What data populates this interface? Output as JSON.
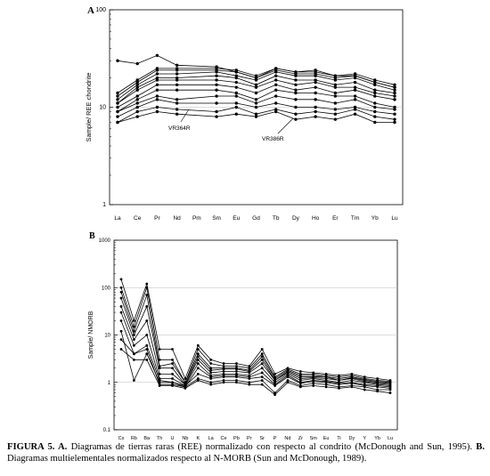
{
  "chart_data": [
    {
      "panel": "A",
      "type": "line",
      "ylabel": "Sample/ REE chondrite",
      "yscale": "log",
      "ylim": [
        1,
        100
      ],
      "ytick_labels": [
        "1",
        "10",
        "100"
      ],
      "grid": true,
      "categories": [
        "La",
        "Ce",
        "Pr",
        "Nd",
        "Pm",
        "Sm",
        "Eu",
        "Gd",
        "Tb",
        "Dy",
        "Ho",
        "Er",
        "Tm",
        "Yb",
        "Lu"
      ],
      "annotations": [
        "VR364R",
        "VR386R"
      ],
      "series": [
        {
          "values": [
            30,
            28,
            34,
            27,
            null,
            26,
            23,
            20,
            25,
            23,
            24,
            21,
            21,
            18,
            16
          ]
        },
        {
          "values": [
            14,
            19,
            25,
            25,
            null,
            25,
            24,
            21,
            25,
            23,
            23,
            21,
            22,
            19,
            17
          ]
        },
        {
          "values": [
            13,
            18,
            24,
            24,
            null,
            24,
            23,
            20,
            24,
            22,
            22,
            20,
            21,
            18,
            16
          ]
        },
        {
          "values": [
            12,
            17,
            22,
            22,
            null,
            23,
            21,
            19,
            23,
            21,
            21,
            19,
            20,
            17,
            15
          ]
        },
        {
          "values": [
            11,
            16,
            20,
            20,
            null,
            21,
            20,
            17,
            21,
            19,
            19,
            17,
            18,
            15,
            14
          ]
        },
        {
          "values": [
            11,
            15,
            19,
            19,
            null,
            19,
            18,
            16,
            19,
            17,
            18,
            16,
            16,
            14,
            13
          ]
        },
        {
          "values": [
            10,
            13,
            17,
            17,
            null,
            17,
            16,
            14,
            17,
            15,
            16,
            14,
            15,
            13,
            12
          ]
        },
        {
          "values": [
            9,
            12,
            15,
            15,
            null,
            15,
            14,
            12,
            15,
            14,
            14,
            13,
            13,
            11,
            10
          ]
        },
        {
          "values": [
            9,
            11,
            13,
            12,
            null,
            13,
            13,
            11,
            13,
            12,
            12,
            11,
            12,
            10,
            9.5
          ]
        },
        {
          "values": [
            8,
            10,
            12,
            11,
            null,
            11,
            11,
            10,
            11,
            10,
            10,
            9.5,
            10,
            9,
            8.5
          ]
        },
        {
          "values": [
            7,
            9,
            10,
            9.5,
            null,
            9,
            10,
            8.5,
            9.5,
            8.5,
            9,
            8.5,
            9.5,
            8,
            7.5
          ]
        },
        {
          "values": [
            7,
            8,
            9,
            8.5,
            null,
            8,
            8.5,
            8,
            9,
            7.5,
            8,
            7.5,
            8.5,
            7,
            7
          ]
        }
      ]
    },
    {
      "panel": "B",
      "type": "line",
      "ylabel": "Sample/ NMORB",
      "yscale": "log",
      "ylim": [
        0.1,
        1000
      ],
      "ytick_labels": [
        "0.1",
        "1",
        "10",
        "100",
        "1000"
      ],
      "grid": true,
      "categories": [
        "Cs",
        "Rb",
        "Ba",
        "Th",
        "U",
        "Nb",
        "K",
        "La",
        "Ce",
        "Pb",
        "Pr",
        "Sr",
        "P",
        "Nd",
        "Zr",
        "Sm",
        "Eu",
        "Ti",
        "Dy",
        "Y",
        "Yb",
        "Lu"
      ],
      "series": [
        {
          "values": [
            150,
            20,
            120,
            5,
            5,
            1.2,
            6,
            3,
            2.5,
            2.5,
            2.2,
            5,
            1.5,
            2,
            1.7,
            1.6,
            1.5,
            1.4,
            1.5,
            1.3,
            1.2,
            1.1
          ]
        },
        {
          "values": [
            100,
            15,
            100,
            3,
            3,
            1,
            5,
            2.5,
            2.2,
            2.2,
            2,
            4,
            1.3,
            1.9,
            1.5,
            1.5,
            1.4,
            1.3,
            1.4,
            1.2,
            1.1,
            1.05
          ]
        },
        {
          "values": [
            80,
            12,
            70,
            2.2,
            2.5,
            1,
            4,
            2,
            2,
            2,
            1.8,
            3.5,
            1.2,
            1.8,
            1.4,
            1.4,
            1.3,
            1.2,
            1.3,
            1.15,
            1.05,
            1
          ]
        },
        {
          "values": [
            60,
            10,
            40,
            2,
            2,
            0.9,
            3.5,
            1.8,
            1.9,
            1.9,
            1.7,
            3,
            1.1,
            1.7,
            1.3,
            1.3,
            1.3,
            1.1,
            1.25,
            1.1,
            1,
            0.95
          ]
        },
        {
          "values": [
            40,
            8,
            20,
            1.5,
            1.5,
            0.9,
            3,
            1.6,
            1.7,
            1.7,
            1.6,
            2.5,
            1.1,
            1.6,
            1.2,
            1.25,
            1.2,
            1.1,
            1.2,
            1.05,
            0.95,
            0.9
          ]
        },
        {
          "values": [
            30,
            6,
            10,
            1.2,
            1.2,
            0.85,
            2.5,
            1.4,
            1.5,
            1.5,
            1.4,
            2,
            1,
            1.5,
            1.1,
            1.2,
            1.1,
            1,
            1.1,
            1,
            0.9,
            0.85
          ]
        },
        {
          "values": [
            20,
            4,
            6,
            1.1,
            1,
            0.8,
            2,
            1.3,
            1.4,
            1.4,
            1.3,
            1.6,
            0.9,
            1.4,
            1,
            1.1,
            1.05,
            0.95,
            1,
            0.9,
            0.85,
            0.8
          ]
        },
        {
          "values": [
            12,
            1.1,
            4,
            1,
            1,
            0.85,
            1.5,
            1.2,
            1.3,
            1.3,
            1.2,
            1.3,
            0.85,
            1.3,
            0.95,
            1.05,
            1,
            0.9,
            0.95,
            0.85,
            0.8,
            0.75
          ]
        },
        {
          "values": [
            8,
            4,
            5,
            0.9,
            0.9,
            0.8,
            1.2,
            1,
            1.1,
            1.1,
            1,
            1.1,
            0.6,
            1.1,
            0.85,
            0.95,
            0.9,
            0.8,
            0.85,
            0.8,
            0.7,
            0.7
          ]
        },
        {
          "values": [
            5,
            3,
            3,
            0.85,
            0.85,
            0.75,
            1.1,
            0.9,
            1,
            1,
            0.9,
            0.9,
            0.55,
            1,
            0.8,
            0.85,
            0.8,
            0.75,
            0.8,
            0.7,
            0.65,
            0.6
          ]
        }
      ]
    }
  ],
  "figure": {
    "label_a": "A",
    "label_b": "B"
  },
  "caption": {
    "lead": "FIGURA 5. A.",
    "text_a": " Diagramas de tierras raras (REE) normalizado con respecto al condrito (McDonough and Sun, 1995). ",
    "lead_b": "B.",
    "text_b": " Diagramas multielementales normalizados respecto al N-MORB (Sun and McDonough, 1989)."
  }
}
